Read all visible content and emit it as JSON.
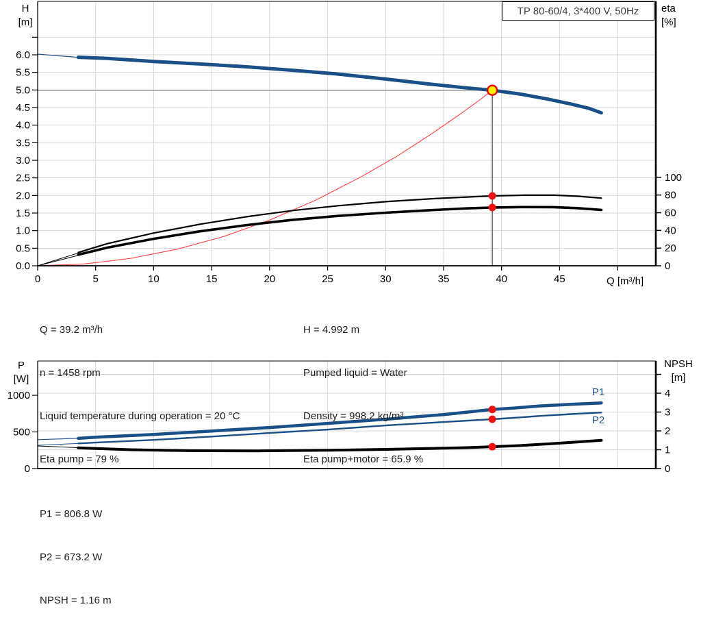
{
  "title_box": {
    "label": "TP 80-60/4, 3*400 V, 50Hz"
  },
  "axis_corner_labels": {
    "top_left": [
      "H",
      "[m]"
    ],
    "top_right": [
      "eta",
      "[%]"
    ],
    "bottom_left": [
      "P",
      "[W]"
    ],
    "bottom_right": [
      "NPSH",
      "[m]"
    ],
    "x_axis": "Q [m³/h]"
  },
  "info_top": {
    "left": [
      "Q = 39.2 m³/h",
      "n = 1458 rpm",
      "Liquid temperature during operation = 20 °C",
      "Eta pump = 79 %"
    ],
    "right": [
      "H = 4.992 m",
      "Pumped liquid = Water",
      "Density = 998.2 kg/m³",
      "Eta pump+motor = 65.9 %"
    ]
  },
  "info_bottom": [
    "P1 = 806.8 W",
    "P2 = 673.2 W",
    "NPSH = 1.16 m"
  ],
  "colors": {
    "curve_blue": "#1a5088",
    "curve_black": "#000000",
    "system_red": "#ff4a4a",
    "dot_red": "#ee1111",
    "duty_yellow": "#ffee00",
    "duty_ring_red": "#e30000",
    "grid": "#d6d6d6",
    "guide_h": "#7d7d7d",
    "guide_v": "#3f3f3f",
    "axis": "#000000",
    "title_text": "#3d3d3d",
    "info_text": "#1c1c1c"
  },
  "chart_data": [
    {
      "id": "head-efficiency-chart",
      "type": "line",
      "title": "TP 80-60/4, 3*400 V, 50Hz",
      "x_axis": {
        "label": "Q [m³/h]",
        "range": [
          0,
          53.3
        ],
        "ticks": {
          "values": [
            0,
            5,
            10,
            15,
            20,
            25,
            30,
            35,
            40,
            45
          ],
          "labels": [
            "0",
            "5",
            "10",
            "15",
            "20",
            "25",
            "30",
            "35",
            "40",
            "45"
          ]
        },
        "extra_ticks": [
          50
        ],
        "grid": [
          5,
          10,
          15,
          20,
          25,
          30,
          35,
          40,
          45,
          50
        ]
      },
      "y_left": {
        "label": "H [m]",
        "range": [
          0,
          7.52
        ],
        "ticks": {
          "values": [
            0,
            0.5,
            1,
            1.5,
            2,
            2.5,
            3,
            3.5,
            4,
            4.5,
            5,
            5.5,
            6
          ],
          "labels": [
            "0.0",
            "0.5",
            "1.0",
            "1.5",
            "2.0",
            "2.5",
            "3.0",
            "3.5",
            "4.0",
            "4.5",
            "5.0",
            "5.5",
            "6.0"
          ]
        },
        "extra_ticks": [
          6.5
        ],
        "grid": [
          0.5,
          1,
          1.5,
          2,
          2.5,
          3,
          3.5,
          4,
          4.5,
          5,
          5.5,
          6,
          6.5
        ]
      },
      "y_right": {
        "label": "eta [%]",
        "range": [
          0,
          299
        ],
        "ticks": {
          "values": [
            0,
            20,
            40,
            60,
            80,
            100
          ],
          "labels": [
            "0",
            "20",
            "40",
            "60",
            "80",
            "100"
          ]
        },
        "extra_ticks": [],
        "grid": []
      },
      "series": [
        {
          "name": "hq-leader",
          "axis": "left",
          "color_key": "curve_blue",
          "width": 1.2,
          "points": [
            [
              0,
              6.02
            ],
            [
              3.8,
              5.92
            ]
          ]
        },
        {
          "name": "hq-curve",
          "axis": "left",
          "color_key": "curve_blue",
          "width": 5,
          "points": [
            [
              3.5,
              5.93
            ],
            [
              6,
              5.9
            ],
            [
              10,
              5.81
            ],
            [
              14,
              5.74
            ],
            [
              18,
              5.66
            ],
            [
              22,
              5.56
            ],
            [
              26,
              5.45
            ],
            [
              30,
              5.31
            ],
            [
              34,
              5.16
            ],
            [
              37,
              5.06
            ],
            [
              39.2,
              4.992
            ],
            [
              41.5,
              4.89
            ],
            [
              44,
              4.74
            ],
            [
              46,
              4.6
            ],
            [
              47.5,
              4.48
            ],
            [
              48.6,
              4.35
            ]
          ]
        },
        {
          "name": "system-curve",
          "axis": "left",
          "color_key": "system_red",
          "width": 1.2,
          "points": [
            [
              0,
              0
            ],
            [
              4,
              0.05
            ],
            [
              8,
              0.21
            ],
            [
              12,
              0.47
            ],
            [
              16,
              0.83
            ],
            [
              20,
              1.3
            ],
            [
              24,
              1.87
            ],
            [
              28,
              2.55
            ],
            [
              31,
              3.12
            ],
            [
              34,
              3.76
            ],
            [
              36.5,
              4.33
            ],
            [
              38,
              4.69
            ],
            [
              39.2,
              4.99
            ]
          ]
        },
        {
          "name": "eta-pump-leader",
          "axis": "right",
          "color_key": "curve_black",
          "width": 1,
          "points": [
            [
              0,
              0
            ],
            [
              4,
              16.5
            ]
          ]
        },
        {
          "name": "eta-pump-curve",
          "axis": "right",
          "color_key": "curve_black",
          "width": 2.2,
          "points": [
            [
              3.5,
              15
            ],
            [
              6,
              25
            ],
            [
              10,
              37
            ],
            [
              14,
              47
            ],
            [
              18,
              55.5
            ],
            [
              22,
              62.5
            ],
            [
              26,
              68
            ],
            [
              30,
              72.5
            ],
            [
              34,
              75.8
            ],
            [
              37,
              77.8
            ],
            [
              39.2,
              79
            ],
            [
              42,
              79.9
            ],
            [
              44.5,
              79.9
            ],
            [
              46.5,
              78.7
            ],
            [
              48.6,
              76.5
            ]
          ]
        },
        {
          "name": "eta-pump-motor-leader",
          "axis": "right",
          "color_key": "curve_black",
          "width": 1,
          "points": [
            [
              0,
              0
            ],
            [
              4,
              13.5
            ]
          ]
        },
        {
          "name": "eta-pump-motor-curve",
          "axis": "right",
          "color_key": "curve_black",
          "width": 3.6,
          "points": [
            [
              3.5,
              12.5
            ],
            [
              6,
              20.5
            ],
            [
              10,
              30.5
            ],
            [
              14,
              39
            ],
            [
              18,
              46
            ],
            [
              22,
              52
            ],
            [
              26,
              56.5
            ],
            [
              30,
              60
            ],
            [
              34,
              63
            ],
            [
              37,
              64.9
            ],
            [
              39.2,
              65.9
            ],
            [
              42,
              66.4
            ],
            [
              44.5,
              66.3
            ],
            [
              46.5,
              65.2
            ],
            [
              48.6,
              63.2
            ]
          ]
        }
      ],
      "guides": {
        "h_value": 4.992,
        "h_axis": "left",
        "v_q": 39.2
      },
      "markers": [
        {
          "name": "duty-point",
          "q": 39.2,
          "v": 4.992,
          "axis": "left",
          "style": "duty"
        },
        {
          "name": "eta-pump-point",
          "q": 39.2,
          "v": 79,
          "axis": "right",
          "style": "dot"
        },
        {
          "name": "eta-pump-motor-point",
          "q": 39.2,
          "v": 65.9,
          "axis": "right",
          "style": "dot"
        }
      ],
      "labels": []
    },
    {
      "id": "power-npsh-chart",
      "type": "line",
      "title": "",
      "x_axis": {
        "label": "",
        "range": [
          0,
          53.3
        ],
        "ticks": {
          "values": [],
          "labels": []
        },
        "extra_ticks": [],
        "grid": [
          5,
          10,
          15,
          20,
          25,
          30,
          35,
          40,
          45,
          50
        ]
      },
      "y_left": {
        "label": "P [W]",
        "range": [
          0,
          1468
        ],
        "ticks": {
          "values": [
            0,
            500,
            1000
          ],
          "labels": [
            "0",
            "500",
            "1000"
          ]
        },
        "extra_ticks": [],
        "grid": []
      },
      "y_right": {
        "label": "NPSH [m]",
        "range": [
          0,
          5.71
        ],
        "ticks": {
          "values": [
            0,
            1,
            2,
            3,
            4
          ],
          "labels": [
            "0",
            "1",
            "2",
            "3",
            "4"
          ]
        },
        "extra_ticks": [
          5
        ],
        "grid": [
          1,
          2,
          3,
          4,
          5
        ]
      },
      "series": [
        {
          "name": "p1-leader",
          "axis": "left",
          "color_key": "curve_blue",
          "width": 1.2,
          "points": [
            [
              0,
              395
            ],
            [
              3.8,
              414
            ]
          ]
        },
        {
          "name": "p1-curve",
          "axis": "left",
          "color_key": "curve_blue",
          "width": 4.5,
          "points": [
            [
              3.5,
              412
            ],
            [
              5,
              428
            ],
            [
              10,
              466
            ],
            [
              15,
              512
            ],
            [
              20,
              560
            ],
            [
              25,
              616
            ],
            [
              30,
              673
            ],
            [
              35,
              737
            ],
            [
              39.2,
              806.8
            ],
            [
              41,
              826
            ],
            [
              43.4,
              856
            ],
            [
              46,
              877
            ],
            [
              48.6,
              896
            ]
          ]
        },
        {
          "name": "p2-leader",
          "axis": "left",
          "color_key": "curve_blue",
          "width": 1,
          "points": [
            [
              0,
              318
            ],
            [
              3.8,
              345
            ]
          ]
        },
        {
          "name": "p2-curve",
          "axis": "left",
          "color_key": "curve_blue",
          "width": 2.4,
          "points": [
            [
              3.5,
              343
            ],
            [
              5,
              354
            ],
            [
              10,
              391
            ],
            [
              15,
              437
            ],
            [
              20,
              485
            ],
            [
              25,
              532
            ],
            [
              30,
              588
            ],
            [
              35,
              635
            ],
            [
              39.2,
              673.2
            ],
            [
              41,
              692
            ],
            [
              43.4,
              719
            ],
            [
              46,
              743
            ],
            [
              48.6,
              765
            ]
          ]
        },
        {
          "name": "npsh-leader",
          "axis": "right",
          "color_key": "curve_black",
          "width": 1,
          "points": [
            [
              0,
              1.2
            ],
            [
              3.8,
              1.1
            ]
          ]
        },
        {
          "name": "npsh-curve",
          "axis": "right",
          "color_key": "curve_black",
          "width": 4,
          "points": [
            [
              3.5,
              1.1
            ],
            [
              8,
              1.0
            ],
            [
              13,
              0.95
            ],
            [
              19,
              0.94
            ],
            [
              25,
              0.97
            ],
            [
              30,
              1.02
            ],
            [
              34,
              1.07
            ],
            [
              37,
              1.11
            ],
            [
              39.2,
              1.16
            ],
            [
              41.5,
              1.22
            ],
            [
              44,
              1.31
            ],
            [
              46.5,
              1.41
            ],
            [
              48.6,
              1.5
            ]
          ]
        }
      ],
      "guides": null,
      "markers": [
        {
          "name": "p1-point",
          "q": 39.2,
          "v": 806.8,
          "axis": "left",
          "style": "dot"
        },
        {
          "name": "p2-point",
          "q": 39.2,
          "v": 673.2,
          "axis": "left",
          "style": "dot"
        },
        {
          "name": "npsh-point",
          "q": 39.2,
          "v": 1.16,
          "axis": "right",
          "style": "dot"
        }
      ],
      "labels": [
        {
          "text": "P1",
          "q": 47.8,
          "v": 1045,
          "axis": "left"
        },
        {
          "text": "P2",
          "q": 47.8,
          "v": 665,
          "axis": "left"
        }
      ]
    }
  ]
}
